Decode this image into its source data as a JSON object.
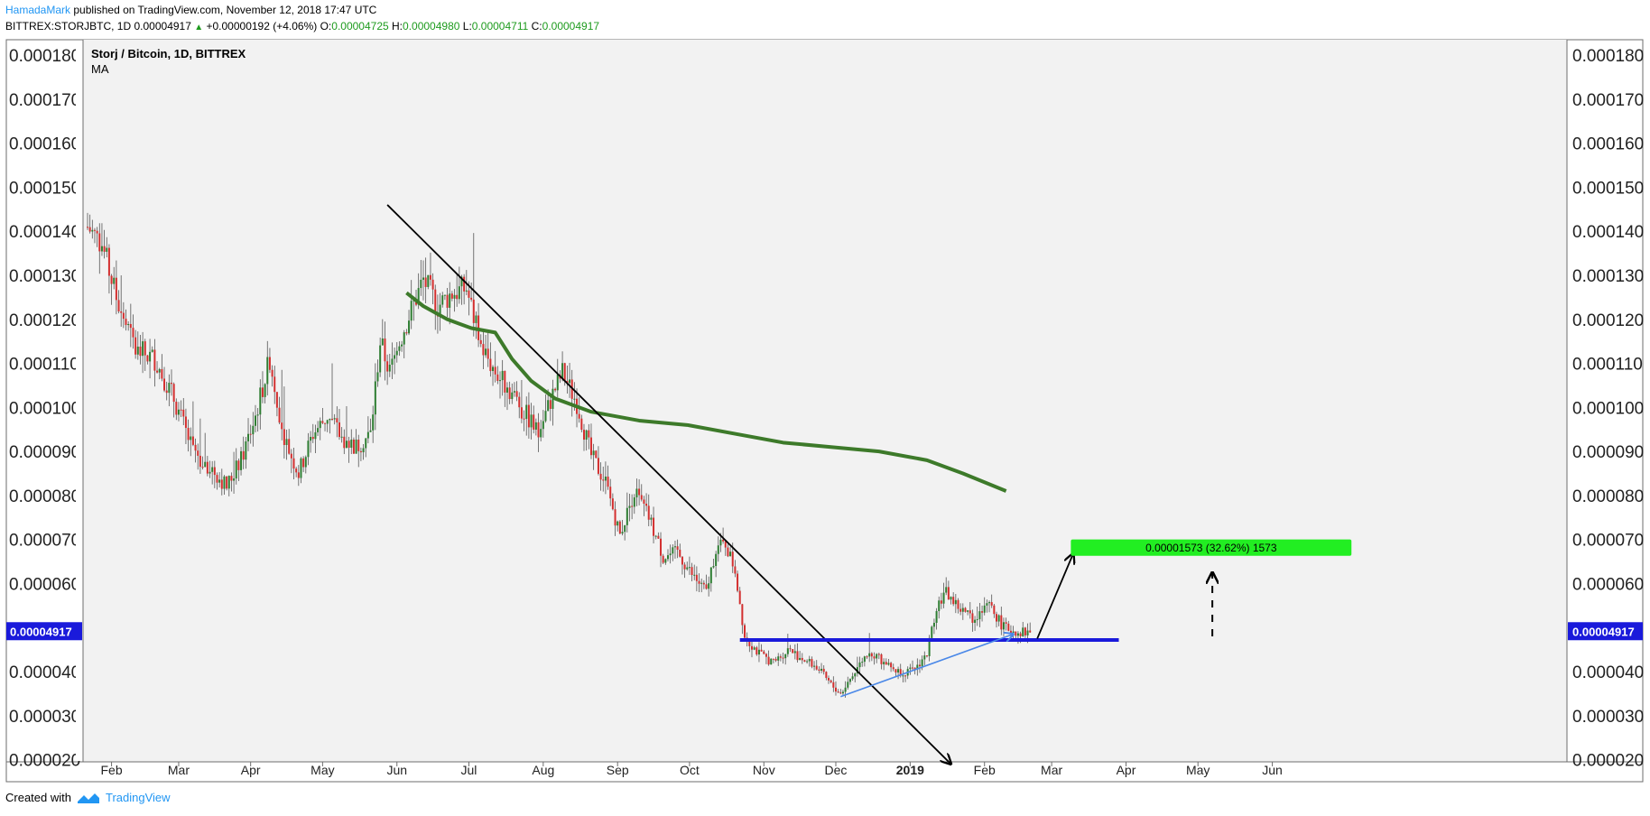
{
  "header": {
    "author": "HamadaMark",
    "published_text": "published on TradingView.com, November 12, 2018 17:47 UTC",
    "symbol": "BITTREX:STORJBTC, 1D",
    "last_price": "0.00004917",
    "change": "+0.00000192 (+4.06%)",
    "o_label": "O:",
    "o_value": "0.00004725",
    "h_label": "H:",
    "h_value": "0.00004980",
    "l_label": "L:",
    "l_value": "0.00004711",
    "c_label": "C:",
    "c_value": "0.00004917"
  },
  "legend": {
    "title": "Storj / Bitcoin, 1D, BITTREX",
    "indicator": "MA"
  },
  "footer": {
    "created_with": "Created with",
    "brand": "TradingView"
  },
  "colors": {
    "up": "#2e7d32",
    "down": "#d32f2f",
    "ma": "#3d7a2a",
    "support": "#1a1adb",
    "uptrend": "#4a88e8",
    "target_box": "#22ee22",
    "price_tag": "#1a1adb"
  },
  "chart_data": {
    "type": "candlestick",
    "title": "Storj / Bitcoin, 1D, BITTREX",
    "ylim": [
      1.95e-05,
      0.0001835
    ],
    "y_ticks": [
      "0.000180",
      "0.000170",
      "0.000160",
      "0.000150",
      "0.000140",
      "0.000130",
      "0.000120",
      "0.000110",
      "0.000100",
      "0.000090",
      "0.000080",
      "0.000070",
      "0.000060",
      "0.000040",
      "0.000030",
      "0.000020"
    ],
    "x_ticks": [
      "Feb",
      "Mar",
      "Apr",
      "May",
      "Jun",
      "Jul",
      "Aug",
      "Sep",
      "Oct",
      "Nov",
      "Dec",
      "2019",
      "Feb",
      "Mar",
      "Apr",
      "May",
      "Jun"
    ],
    "last_price_label": "0.00004917",
    "last_price": 4.917e-05,
    "price_path": [
      [
        0,
        0.000141
      ],
      [
        6,
        0.000137
      ],
      [
        12,
        0.000125
      ],
      [
        20,
        0.000113
      ],
      [
        28,
        0.000111
      ],
      [
        36,
        0.000102
      ],
      [
        44,
        9e-05
      ],
      [
        52,
        8.6e-05
      ],
      [
        58,
        8.2e-05
      ],
      [
        64,
        8.8e-05
      ],
      [
        70,
        9.8e-05
      ],
      [
        76,
        0.000111
      ],
      [
        82,
        9.3e-05
      ],
      [
        88,
        8.5e-05
      ],
      [
        94,
        9.4e-05
      ],
      [
        100,
        9.8e-05
      ],
      [
        106,
        9.3e-05
      ],
      [
        112,
        9.1e-05
      ],
      [
        118,
        9.4e-05
      ],
      [
        122,
        0.000115
      ],
      [
        126,
        0.000108
      ],
      [
        132,
        0.000118
      ],
      [
        140,
        0.000129
      ],
      [
        146,
        0.000123
      ],
      [
        152,
        0.000126
      ],
      [
        158,
        0.000127
      ],
      [
        164,
        0.000114
      ],
      [
        170,
        0.000108
      ],
      [
        176,
        0.000104
      ],
      [
        182,
        9.9e-05
      ],
      [
        188,
        9.4e-05
      ],
      [
        194,
        0.000103
      ],
      [
        198,
        0.000108
      ],
      [
        204,
        0.000101
      ],
      [
        210,
        8.9e-05
      ],
      [
        216,
        8.3e-05
      ],
      [
        222,
        7.1e-05
      ],
      [
        228,
        8.1e-05
      ],
      [
        234,
        7.5e-05
      ],
      [
        240,
        6.6e-05
      ],
      [
        246,
        6.7e-05
      ],
      [
        252,
        6.2e-05
      ],
      [
        258,
        5.8e-05
      ],
      [
        262,
        6.8e-05
      ],
      [
        266,
        6.9e-05
      ],
      [
        270,
        6.3e-05
      ],
      [
        274,
        4.8e-05
      ],
      [
        280,
        4.4e-05
      ],
      [
        286,
        4.2e-05
      ],
      [
        292,
        4.5e-05
      ],
      [
        298,
        4.3e-05
      ],
      [
        304,
        4.1e-05
      ],
      [
        310,
        3.7e-05
      ],
      [
        314,
        3.5e-05
      ],
      [
        320,
        4e-05
      ],
      [
        326,
        4.5e-05
      ],
      [
        332,
        4.2e-05
      ],
      [
        338,
        4e-05
      ],
      [
        344,
        4e-05
      ],
      [
        350,
        4.4e-05
      ],
      [
        354,
        5.5e-05
      ],
      [
        358,
        5.8e-05
      ],
      [
        364,
        5.4e-05
      ],
      [
        370,
        5.2e-05
      ],
      [
        376,
        5.5e-05
      ],
      [
        382,
        5e-05
      ],
      [
        388,
        4.9e-05
      ],
      [
        393,
        4.9e-05
      ]
    ],
    "series": [
      {
        "name": "MA",
        "type": "line",
        "points": [
          [
            133,
            0.000126
          ],
          [
            140,
            0.000123
          ],
          [
            150,
            0.00012
          ],
          [
            160,
            0.000118
          ],
          [
            170,
            0.000117
          ],
          [
            177,
            0.000111
          ],
          [
            185,
            0.000106
          ],
          [
            195,
            0.000102
          ],
          [
            210,
            9.9e-05
          ],
          [
            230,
            9.7e-05
          ],
          [
            250,
            9.6e-05
          ],
          [
            270,
            9.4e-05
          ],
          [
            290,
            9.2e-05
          ],
          [
            310,
            9.1e-05
          ],
          [
            330,
            9e-05
          ],
          [
            350,
            8.8e-05
          ],
          [
            365,
            8.5e-05
          ],
          [
            383,
            8.1e-05
          ]
        ]
      }
    ],
    "annotations": {
      "downtrend_line": [
        [
          125,
          0.000146
        ],
        [
          360,
          1.9e-05
        ]
      ],
      "support_line": [
        [
          272,
          4.717e-05
        ],
        [
          430,
          4.717e-05
        ]
      ],
      "uptrend_line": [
        [
          314,
          3.43e-05
        ],
        [
          386,
          4.85e-05
        ]
      ],
      "target_arrow": [
        [
          396,
          4.75e-05
        ],
        [
          411,
          6.68e-05
        ]
      ],
      "dashed_arrow": [
        [
          469,
          4.8e-05
        ],
        [
          469,
          6.25e-05
        ]
      ],
      "target_box": {
        "from": [
          410,
          7e-05
        ],
        "to": [
          527,
          6.63e-05
        ],
        "label": "0.00001573 (32.62%) 1573"
      }
    }
  }
}
